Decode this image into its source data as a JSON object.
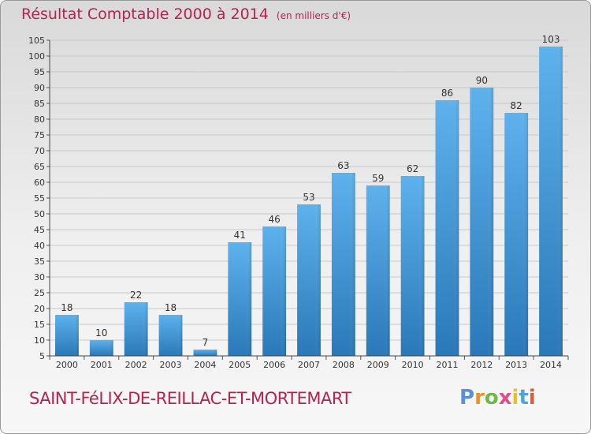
{
  "header": {
    "title": "Résultat Comptable 2000 à 2014",
    "subtitle": "(en milliers d'€)"
  },
  "footer": {
    "commune": "SAINT-FéLIX-DE-REILLAC-ET-MORTEMART",
    "logo_letters": [
      "P",
      "r",
      "o",
      "x",
      "i",
      "t",
      "i"
    ]
  },
  "colors": {
    "title": "#b8224f",
    "bar_light": "#5aaee8",
    "bar_dark": "#2a78b8",
    "grid": "#c8c8c8",
    "axis_text": "#333333"
  },
  "chart_data": {
    "type": "bar",
    "title": "Résultat Comptable 2000 à 2014",
    "subtitle": "(en milliers d'€)",
    "categories": [
      "2000",
      "2001",
      "2002",
      "2003",
      "2004",
      "2005",
      "2006",
      "2007",
      "2008",
      "2009",
      "2010",
      "2011",
      "2012",
      "2013",
      "2014"
    ],
    "values": [
      18,
      10,
      22,
      18,
      7,
      41,
      46,
      53,
      63,
      59,
      62,
      86,
      90,
      82,
      103
    ],
    "value_labels": [
      "18",
      "10",
      "22",
      "18",
      "7",
      "41",
      "46",
      "53",
      "63",
      "59",
      "62",
      "86",
      "90",
      "82",
      "103"
    ],
    "ylim": [
      5,
      105
    ],
    "yticks": [
      5,
      10,
      15,
      20,
      25,
      30,
      35,
      40,
      45,
      50,
      55,
      60,
      65,
      70,
      75,
      80,
      85,
      90,
      95,
      100,
      105
    ],
    "ytick_labels": [
      "5",
      "10",
      "15",
      "20",
      "25",
      "30",
      "35",
      "40",
      "45",
      "50",
      "55",
      "60",
      "65",
      "70",
      "75",
      "80",
      "85",
      "90",
      "95",
      "100",
      "105"
    ],
    "grid": true,
    "xlabel": "",
    "ylabel": ""
  }
}
